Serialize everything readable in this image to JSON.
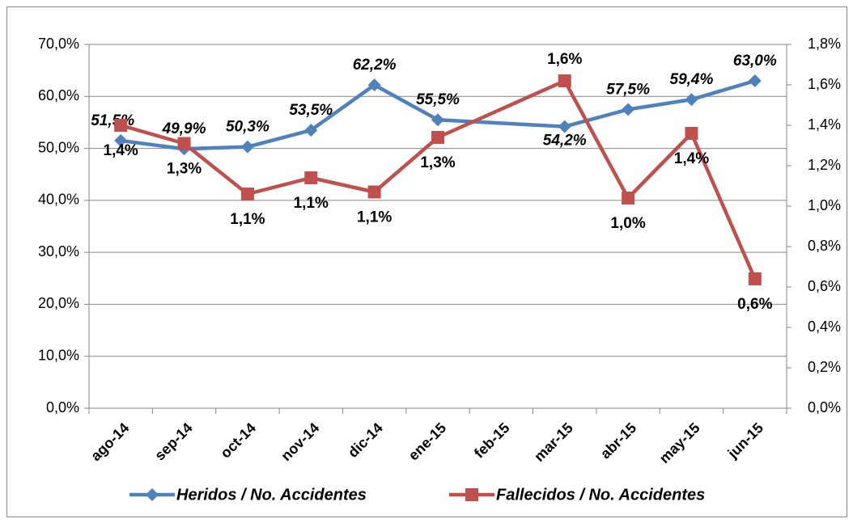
{
  "chart_data": {
    "type": "line",
    "categories": [
      "ago-14",
      "sep-14",
      "oct-14",
      "nov-14",
      "dic-14",
      "ene-15",
      "feb-15",
      "mar-15",
      "abr-15",
      "may-15",
      "jun-15"
    ],
    "connect_gaps": true,
    "series": [
      {
        "name": "Heridos / No. Accidentes",
        "color": "#4f81bd",
        "marker": "diamond",
        "values": [
          51.5,
          49.9,
          50.3,
          53.5,
          62.2,
          55.5,
          null,
          54.2,
          57.5,
          59.4,
          63.0
        ],
        "value_labels": [
          "51,5%",
          "49,9%",
          "50,3%",
          "53,5%",
          "62,2%",
          "55,5%",
          null,
          "54,2%",
          "57,5%",
          "59,4%",
          "63,0%"
        ]
      },
      {
        "name": "Fallecidos / No. Accidentes",
        "color": "#c0504d",
        "marker": "square",
        "axis": "y2",
        "values": [
          1.4,
          1.31,
          1.06,
          1.14,
          1.07,
          1.34,
          null,
          1.62,
          1.04,
          1.36,
          0.64
        ],
        "value_labels": [
          "1,4%",
          "1,3%",
          "1,1%",
          "1,1%",
          "1,1%",
          "1,3%",
          null,
          "1,6%",
          "1,0%",
          "1,4%",
          "0,6%"
        ]
      }
    ],
    "ylim": [
      0,
      70
    ],
    "yticks": [
      {
        "value": 0,
        "label": "0,0%"
      },
      {
        "value": 10,
        "label": "10,0%"
      },
      {
        "value": 20,
        "label": "20,0%"
      },
      {
        "value": 30,
        "label": "30,0%"
      },
      {
        "value": 40,
        "label": "40,0%"
      },
      {
        "value": 50,
        "label": "50,0%"
      },
      {
        "value": 60,
        "label": "60,0%"
      },
      {
        "value": 70,
        "label": "70,0%"
      }
    ],
    "y2lim": [
      0,
      1.8
    ],
    "y2ticks": [
      {
        "value": 0,
        "label": "0,0%"
      },
      {
        "value": 0.2,
        "label": "0,2%"
      },
      {
        "value": 0.4,
        "label": "0,4%"
      },
      {
        "value": 0.6,
        "label": "0,6%"
      },
      {
        "value": 0.8,
        "label": "0,8%"
      },
      {
        "value": 1.0,
        "label": "1,0%"
      },
      {
        "value": 1.2,
        "label": "1,2%"
      },
      {
        "value": 1.4,
        "label": "1,4%"
      },
      {
        "value": 1.6,
        "label": "1,6%"
      },
      {
        "value": 1.8,
        "label": "1,8%"
      }
    ],
    "grid": true,
    "legend": "bottom"
  }
}
